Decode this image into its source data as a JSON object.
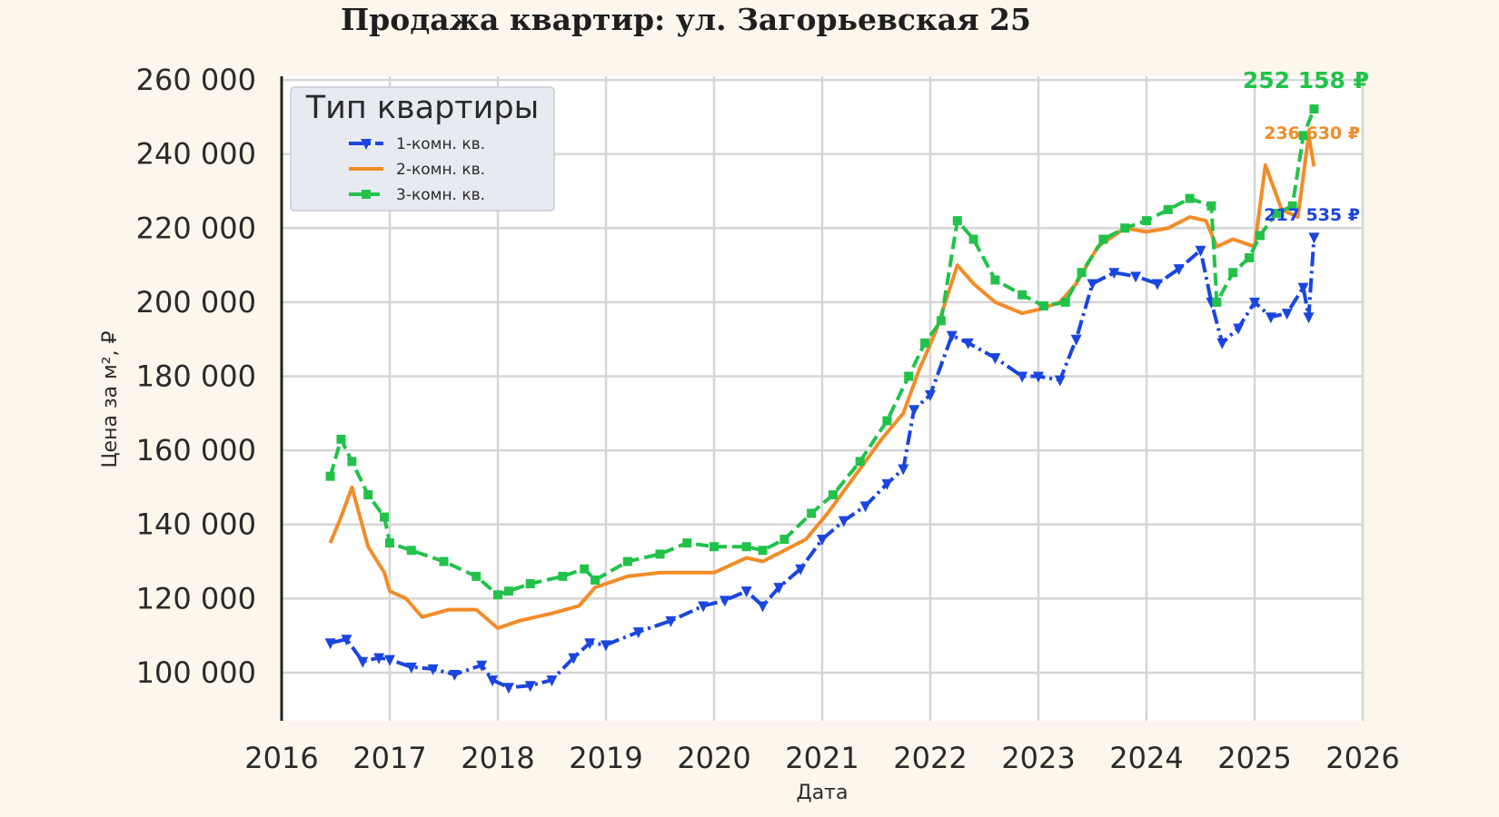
{
  "chart_data": {
    "type": "line",
    "title": "Продажа квартир: ул. Загорьевская 25",
    "xlabel": "Дата",
    "ylabel": "Цена за м², ₽",
    "xlim": [
      2016,
      2026
    ],
    "ylim": [
      87000,
      261000
    ],
    "x_ticks": [
      2016,
      2017,
      2018,
      2019,
      2020,
      2021,
      2022,
      2023,
      2024,
      2025,
      2026
    ],
    "x_tick_labels": [
      "2016",
      "2017",
      "2018",
      "2019",
      "2020",
      "2021",
      "2022",
      "2023",
      "2024",
      "2025",
      "2026"
    ],
    "y_ticks": [
      100000,
      120000,
      140000,
      160000,
      180000,
      200000,
      220000,
      240000,
      260000
    ],
    "y_tick_labels": [
      "100 000",
      "120 000",
      "140 000",
      "160 000",
      "180 000",
      "200 000",
      "220 000",
      "240 000",
      "260 000"
    ],
    "grid": true,
    "legend": {
      "title": "Тип квартиры",
      "position": "top-left"
    },
    "series": [
      {
        "name": "1-комн. кв.",
        "color": "#1a45e0",
        "marker": "triangle-down",
        "dash": "dash-dot",
        "end_label": "217 535 ₽",
        "x": [
          2016.45,
          2016.6,
          2016.75,
          2016.9,
          2017.0,
          2017.2,
          2017.4,
          2017.6,
          2017.85,
          2017.95,
          2018.1,
          2018.3,
          2018.5,
          2018.7,
          2018.85,
          2019.0,
          2019.3,
          2019.6,
          2019.9,
          2020.1,
          2020.3,
          2020.45,
          2020.6,
          2020.8,
          2021.0,
          2021.2,
          2021.4,
          2021.6,
          2021.75,
          2021.85,
          2022.0,
          2022.2,
          2022.35,
          2022.6,
          2022.85,
          2023.0,
          2023.2,
          2023.35,
          2023.5,
          2023.7,
          2023.9,
          2024.1,
          2024.3,
          2024.5,
          2024.6,
          2024.7,
          2024.85,
          2025.0,
          2025.15,
          2025.3,
          2025.45,
          2025.5,
          2025.55
        ],
        "y": [
          108000,
          109000,
          103000,
          104000,
          103500,
          101500,
          101000,
          99500,
          102000,
          98000,
          96000,
          96500,
          98000,
          104000,
          108000,
          107500,
          111000,
          114000,
          118000,
          119500,
          122000,
          118000,
          123000,
          128000,
          136000,
          141000,
          145000,
          151000,
          155000,
          171000,
          175000,
          191000,
          189000,
          185000,
          180000,
          180000,
          179000,
          190000,
          205000,
          208000,
          207000,
          205000,
          209000,
          214000,
          200000,
          189000,
          193000,
          200000,
          196000,
          197000,
          204000,
          196000,
          217535
        ]
      },
      {
        "name": "2-комн. кв.",
        "color": "#f28c28",
        "marker": "none",
        "dash": "solid",
        "end_label": "236 630 ₽",
        "x": [
          2016.45,
          2016.55,
          2016.65,
          2016.8,
          2016.95,
          2017.0,
          2017.15,
          2017.3,
          2017.55,
          2017.8,
          2018.0,
          2018.2,
          2018.5,
          2018.75,
          2018.9,
          2019.2,
          2019.5,
          2019.75,
          2020.0,
          2020.3,
          2020.45,
          2020.65,
          2020.85,
          2021.05,
          2021.3,
          2021.55,
          2021.75,
          2021.9,
          2022.05,
          2022.25,
          2022.4,
          2022.6,
          2022.85,
          2023.0,
          2023.2,
          2023.35,
          2023.55,
          2023.8,
          2024.0,
          2024.2,
          2024.4,
          2024.55,
          2024.65,
          2024.8,
          2025.0,
          2025.1,
          2025.25,
          2025.4,
          2025.5,
          2025.55
        ],
        "y": [
          135000,
          142000,
          150000,
          134000,
          127000,
          122000,
          120000,
          115000,
          117000,
          117000,
          112000,
          114000,
          116000,
          118000,
          123000,
          126000,
          127000,
          127000,
          127000,
          131000,
          130000,
          133000,
          136000,
          143000,
          153000,
          163000,
          170000,
          182000,
          192000,
          210000,
          205000,
          200000,
          197000,
          198000,
          200000,
          205000,
          215000,
          220000,
          219000,
          220000,
          223000,
          222000,
          215000,
          217000,
          215000,
          237000,
          225000,
          223000,
          245000,
          236630
        ]
      },
      {
        "name": "3-комн. кв.",
        "color": "#22c24a",
        "marker": "square",
        "dash": "dashed",
        "end_label": "252 158 ₽",
        "x": [
          2016.45,
          2016.55,
          2016.65,
          2016.8,
          2016.95,
          2017.0,
          2017.2,
          2017.5,
          2017.8,
          2018.0,
          2018.1,
          2018.3,
          2018.6,
          2018.8,
          2018.9,
          2019.2,
          2019.5,
          2019.75,
          2020.0,
          2020.3,
          2020.45,
          2020.65,
          2020.9,
          2021.1,
          2021.35,
          2021.6,
          2021.8,
          2021.95,
          2022.1,
          2022.25,
          2022.4,
          2022.6,
          2022.85,
          2023.05,
          2023.25,
          2023.4,
          2023.6,
          2023.8,
          2024.0,
          2024.2,
          2024.4,
          2024.6,
          2024.65,
          2024.8,
          2024.95,
          2025.05,
          2025.2,
          2025.35,
          2025.45,
          2025.55
        ],
        "y": [
          153000,
          163000,
          157000,
          148000,
          142000,
          135000,
          133000,
          130000,
          126000,
          121000,
          122000,
          124000,
          126000,
          128000,
          125000,
          130000,
          132000,
          135000,
          134000,
          134000,
          133000,
          136000,
          143000,
          148000,
          157000,
          168000,
          180000,
          189000,
          195000,
          222000,
          217000,
          206000,
          202000,
          199000,
          200000,
          208000,
          217000,
          220000,
          222000,
          225000,
          228000,
          226000,
          200000,
          208000,
          212000,
          218000,
          224000,
          226000,
          245000,
          252158
        ]
      }
    ]
  }
}
